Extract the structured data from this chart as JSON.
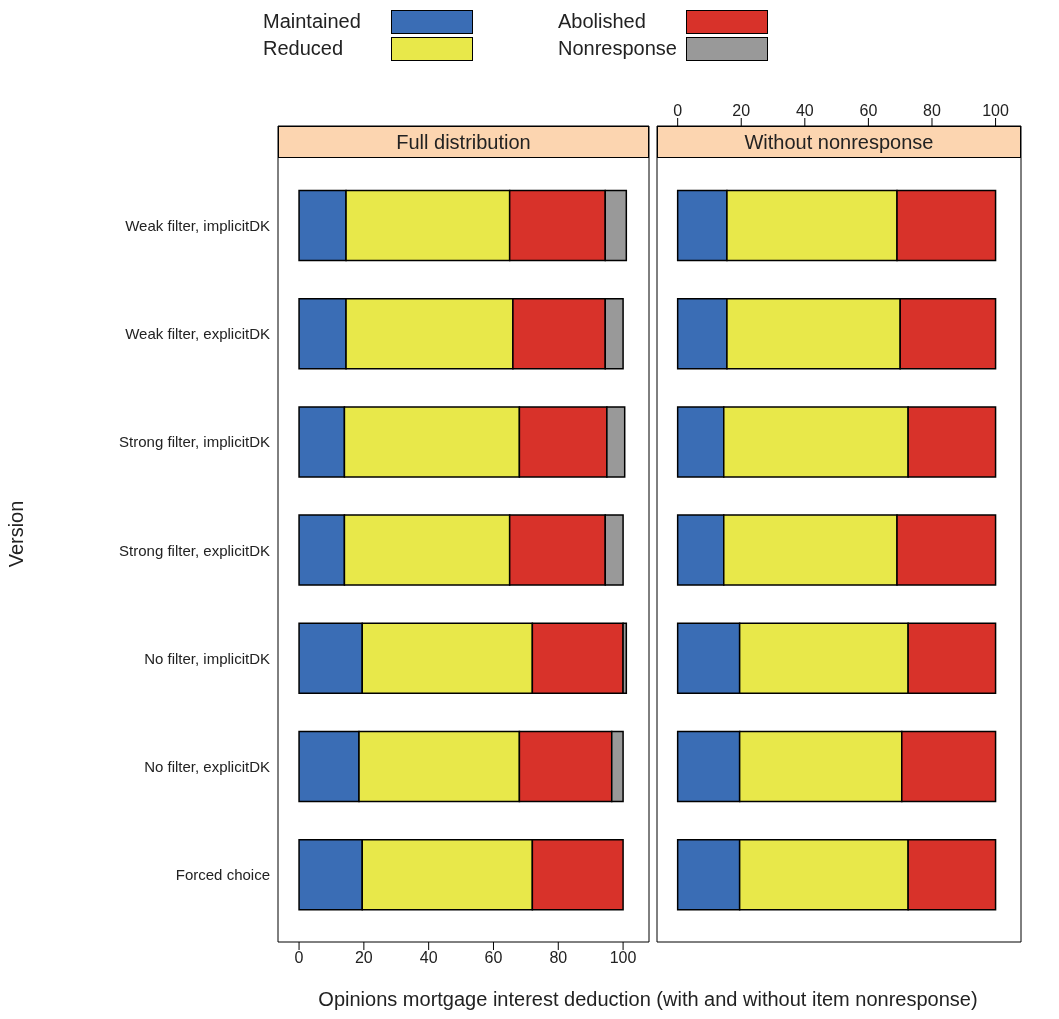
{
  "chart_data": [
    {
      "type": "bar",
      "orientation": "horizontal",
      "stacked": true,
      "title": "Full distribution",
      "xlabel": "Opinions mortgage interest deduction (with and without item nonresponse)",
      "ylabel": "Version",
      "legend": "top",
      "categories": [
        "Weak filter, implicitDK",
        "Weak filter, explicitDK",
        "Strong filter, implicitDK",
        "Strong filter, explicitDK",
        "No filter, implicitDK",
        "No filter, explicitDK",
        "Forced choice"
      ],
      "series": [
        {
          "name": "Maintained",
          "color": "#3a6db5",
          "values": [
            14.5,
            14.5,
            14,
            14,
            19.5,
            18.5,
            19.5
          ]
        },
        {
          "name": "Reduced",
          "color": "#e8e84a",
          "values": [
            50.5,
            51.5,
            54,
            51,
            52.5,
            49.5,
            52.5
          ]
        },
        {
          "name": "Abolished",
          "color": "#d8322a",
          "values": [
            29.5,
            28.5,
            27,
            29.5,
            28,
            28.5,
            28
          ]
        },
        {
          "name": "Nonresponse",
          "color": "#999999",
          "values": [
            6.5,
            5.5,
            5.5,
            5.5,
            1,
            3.5,
            0
          ]
        }
      ],
      "xlim": [
        -6.5,
        108
      ],
      "xticks": [
        0,
        20,
        40,
        60,
        80,
        100
      ]
    },
    {
      "type": "bar",
      "orientation": "horizontal",
      "stacked": true,
      "title": "Without nonresponse",
      "categories": [
        null,
        null,
        null,
        null,
        null,
        null,
        null
      ],
      "series": [
        {
          "color": "#3a6db5",
          "values": [
            15.5,
            15.5,
            14.5,
            14.5,
            19.5,
            19.5,
            19.5
          ]
        },
        {
          "color": "#e8e84a",
          "values": [
            53.5,
            54.5,
            58,
            54.5,
            53,
            51,
            53
          ]
        },
        {
          "color": "#d8322a",
          "values": [
            31,
            30,
            27.5,
            31,
            27.5,
            29.5,
            27.5
          ]
        }
      ],
      "xlim": [
        -6.5,
        108
      ],
      "xticks": [
        0,
        20,
        40,
        60,
        80,
        100
      ]
    }
  ]
}
